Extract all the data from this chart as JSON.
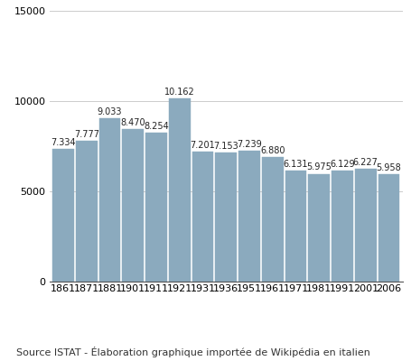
{
  "years": [
    "1861",
    "1871",
    "1881",
    "1901",
    "1911",
    "1921",
    "1931",
    "1936",
    "1951",
    "1961",
    "1971",
    "1981",
    "1991",
    "2001",
    "2006"
  ],
  "values": [
    7334,
    7777,
    9033,
    8470,
    8254,
    10162,
    7201,
    7153,
    7239,
    6880,
    6131,
    5975,
    6129,
    6227,
    5958
  ],
  "labels": [
    "7.334",
    "7.777",
    "9.033",
    "8.470",
    "8.254",
    "10.162",
    "7.201",
    "7.153",
    "7.239",
    "6.880",
    "6.131",
    "5.975",
    "6.129",
    "6.227",
    "5.958"
  ],
  "bar_color": "#8BAABE",
  "bar_edgecolor": "#8BAABE",
  "background_color": "#ffffff",
  "ylim": [
    0,
    15000
  ],
  "yticks": [
    0,
    5000,
    10000,
    15000
  ],
  "caption": "Source ISTAT - Élaboration graphique importée de Wikipédia en italien",
  "label_fontsize": 7.0,
  "caption_fontsize": 8.0,
  "tick_fontsize": 8.0,
  "bar_width": 0.92
}
